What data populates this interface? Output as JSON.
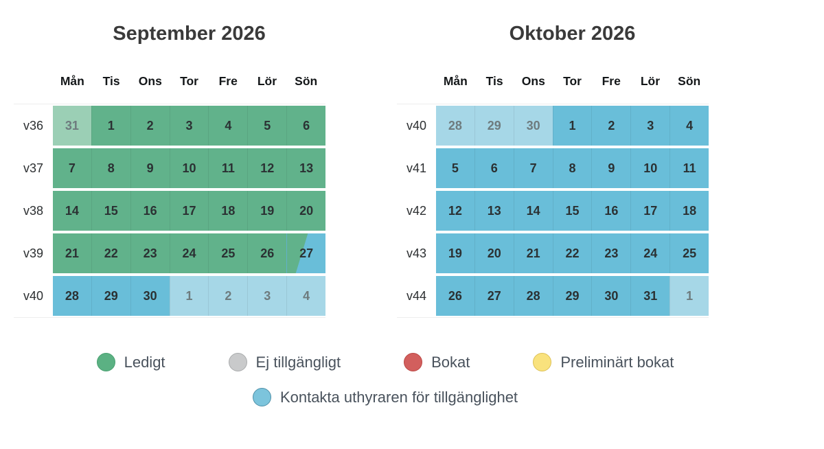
{
  "months": [
    {
      "title": "September 2026",
      "day_headers": [
        "Mån",
        "Tis",
        "Ons",
        "Tor",
        "Fre",
        "Lör",
        "Sön"
      ],
      "weeks": [
        {
          "label": "v36",
          "days": [
            {
              "day": "31",
              "state": "available_muted"
            },
            {
              "day": "1",
              "state": "available"
            },
            {
              "day": "2",
              "state": "available"
            },
            {
              "day": "3",
              "state": "available"
            },
            {
              "day": "4",
              "state": "available"
            },
            {
              "day": "5",
              "state": "available"
            },
            {
              "day": "6",
              "state": "available"
            }
          ]
        },
        {
          "label": "v37",
          "days": [
            {
              "day": "7",
              "state": "available"
            },
            {
              "day": "8",
              "state": "available"
            },
            {
              "day": "9",
              "state": "available"
            },
            {
              "day": "10",
              "state": "available"
            },
            {
              "day": "11",
              "state": "available"
            },
            {
              "day": "12",
              "state": "available"
            },
            {
              "day": "13",
              "state": "available"
            }
          ]
        },
        {
          "label": "v38",
          "days": [
            {
              "day": "14",
              "state": "available"
            },
            {
              "day": "15",
              "state": "available"
            },
            {
              "day": "16",
              "state": "available"
            },
            {
              "day": "17",
              "state": "available"
            },
            {
              "day": "18",
              "state": "available"
            },
            {
              "day": "19",
              "state": "available"
            },
            {
              "day": "20",
              "state": "available"
            }
          ]
        },
        {
          "label": "v39",
          "days": [
            {
              "day": "21",
              "state": "available"
            },
            {
              "day": "22",
              "state": "available"
            },
            {
              "day": "23",
              "state": "available"
            },
            {
              "day": "24",
              "state": "available"
            },
            {
              "day": "25",
              "state": "available"
            },
            {
              "day": "26",
              "state": "available"
            },
            {
              "day": "27",
              "state": "split_available_contact"
            }
          ]
        },
        {
          "label": "v40",
          "days": [
            {
              "day": "28",
              "state": "contact"
            },
            {
              "day": "29",
              "state": "contact"
            },
            {
              "day": "30",
              "state": "contact"
            },
            {
              "day": "1",
              "state": "contact_muted"
            },
            {
              "day": "2",
              "state": "contact_muted"
            },
            {
              "day": "3",
              "state": "contact_muted"
            },
            {
              "day": "4",
              "state": "contact_muted"
            }
          ]
        }
      ]
    },
    {
      "title": "Oktober 2026",
      "day_headers": [
        "Mån",
        "Tis",
        "Ons",
        "Tor",
        "Fre",
        "Lör",
        "Sön"
      ],
      "weeks": [
        {
          "label": "v40",
          "days": [
            {
              "day": "28",
              "state": "contact_muted"
            },
            {
              "day": "29",
              "state": "contact_muted"
            },
            {
              "day": "30",
              "state": "contact_muted"
            },
            {
              "day": "1",
              "state": "contact"
            },
            {
              "day": "2",
              "state": "contact"
            },
            {
              "day": "3",
              "state": "contact"
            },
            {
              "day": "4",
              "state": "contact"
            }
          ]
        },
        {
          "label": "v41",
          "days": [
            {
              "day": "5",
              "state": "contact"
            },
            {
              "day": "6",
              "state": "contact"
            },
            {
              "day": "7",
              "state": "contact"
            },
            {
              "day": "8",
              "state": "contact"
            },
            {
              "day": "9",
              "state": "contact"
            },
            {
              "day": "10",
              "state": "contact"
            },
            {
              "day": "11",
              "state": "contact"
            }
          ]
        },
        {
          "label": "v42",
          "days": [
            {
              "day": "12",
              "state": "contact"
            },
            {
              "day": "13",
              "state": "contact"
            },
            {
              "day": "14",
              "state": "contact"
            },
            {
              "day": "15",
              "state": "contact"
            },
            {
              "day": "16",
              "state": "contact"
            },
            {
              "day": "17",
              "state": "contact"
            },
            {
              "day": "18",
              "state": "contact"
            }
          ]
        },
        {
          "label": "v43",
          "days": [
            {
              "day": "19",
              "state": "contact"
            },
            {
              "day": "20",
              "state": "contact"
            },
            {
              "day": "21",
              "state": "contact"
            },
            {
              "day": "22",
              "state": "contact"
            },
            {
              "day": "23",
              "state": "contact"
            },
            {
              "day": "24",
              "state": "contact"
            },
            {
              "day": "25",
              "state": "contact"
            }
          ]
        },
        {
          "label": "v44",
          "days": [
            {
              "day": "26",
              "state": "contact"
            },
            {
              "day": "27",
              "state": "contact"
            },
            {
              "day": "28",
              "state": "contact"
            },
            {
              "day": "29",
              "state": "contact"
            },
            {
              "day": "30",
              "state": "contact"
            },
            {
              "day": "31",
              "state": "contact"
            },
            {
              "day": "1",
              "state": "contact_muted"
            }
          ]
        }
      ]
    }
  ],
  "legend": {
    "rows": [
      [
        {
          "swatch": "green",
          "label": "Ledigt"
        },
        {
          "swatch": "gray",
          "label": "Ej tillgängligt"
        },
        {
          "swatch": "red",
          "label": "Bokat"
        },
        {
          "swatch": "yellow",
          "label": "Preliminärt bokat"
        }
      ],
      [
        {
          "swatch": "blue",
          "label": "Kontakta uthyraren för tillgänglighet"
        }
      ]
    ]
  },
  "colors": {
    "available": "#61b28b",
    "available_muted": "#9bcfb5",
    "contact": "#69bed9",
    "contact_muted": "#a6d7e7",
    "day_text": "#2b3133",
    "muted_day_text": "#6e7b7e",
    "legend_text": "#49525c",
    "legend_green": "#5bb183",
    "legend_green_border": "#48a06f",
    "legend_gray": "#c9cacb",
    "legend_gray_border": "#a9abac",
    "legend_red": "#d25f5d",
    "legend_red_border": "#bb4744",
    "legend_yellow": "#f9e27d",
    "legend_yellow_border": "#ddc157",
    "legend_blue": "#7cc4dc",
    "legend_blue_border": "#4f90a8"
  }
}
